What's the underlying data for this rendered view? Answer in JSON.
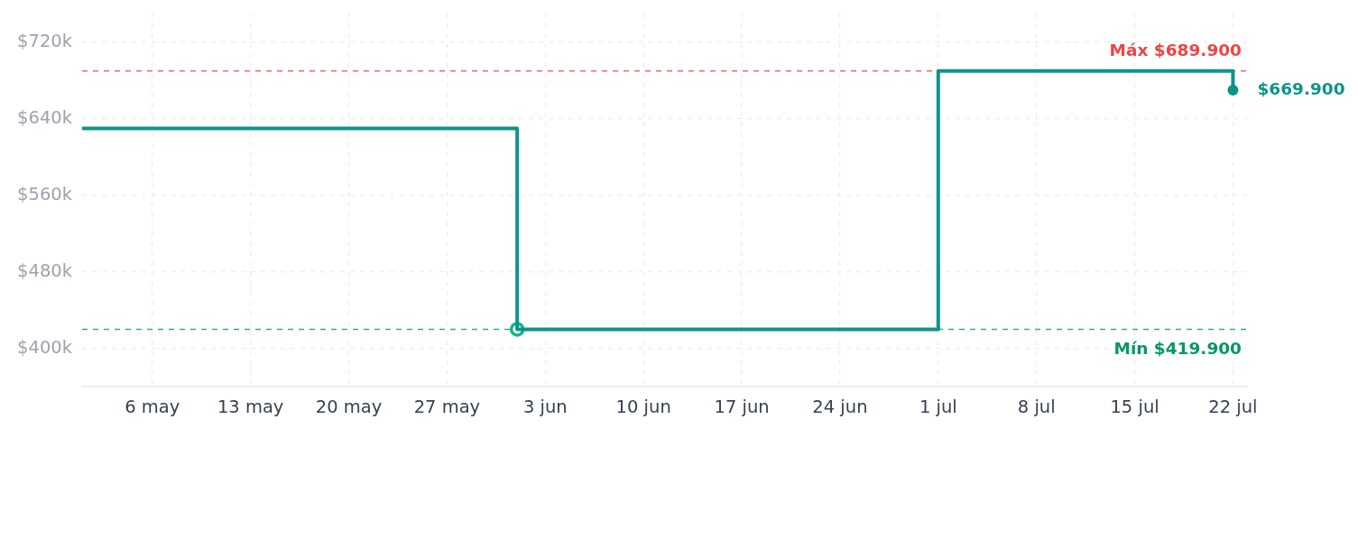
{
  "chart_data": {
    "type": "step",
    "x": [
      "--05-01",
      "--06-01",
      "--07-01",
      "--07-22"
    ],
    "series": [
      {
        "color": "#0d9488",
        "values": [
          630000,
          419900,
          689900,
          669900
        ]
      },
      {
        "type": "scatter",
        "color": "#10b981",
        "x": [
          "--06-01"
        ],
        "values": [
          419900
        ],
        "marker": "circle"
      }
    ],
    "xlim": [
      "--05-01",
      "--07-23"
    ],
    "xticks": [
      {
        "value": "--05-06",
        "label": "6 may"
      },
      {
        "value": "--05-13",
        "label": "13 may"
      },
      {
        "value": "--05-20",
        "label": "20 may"
      },
      {
        "value": "--05-27",
        "label": "27 may"
      },
      {
        "value": "--06-03",
        "label": "3 jun"
      },
      {
        "value": "--06-10",
        "label": "10 jun"
      },
      {
        "value": "--06-17",
        "label": "17 jun"
      },
      {
        "value": "--06-24",
        "label": "24 jun"
      },
      {
        "value": "--07-01",
        "label": "1 jul"
      },
      {
        "value": "--07-08",
        "label": "8 jul"
      },
      {
        "value": "--07-15",
        "label": "15 jul"
      },
      {
        "value": "--07-22",
        "label": "22 jul"
      }
    ],
    "ylim": [
      360000,
      750000
    ],
    "yticks": [
      {
        "value": 400000,
        "label": "$400k"
      },
      {
        "value": 480000,
        "label": "$480k"
      },
      {
        "value": 560000,
        "label": "$560k"
      },
      {
        "value": 640000,
        "label": "$640k"
      },
      {
        "value": 720000,
        "label": "$720k"
      }
    ],
    "grid": true,
    "ref_lines": [
      {
        "axis": "y",
        "value": 689900,
        "label": "Máx $689.900",
        "color": "#ef4444",
        "line_style": "dashed"
      },
      {
        "axis": "y",
        "value": 419900,
        "label": "Mín $419.900",
        "color": "#059669",
        "line_style": "dashed"
      }
    ],
    "annotations": [
      {
        "text": "$669.900",
        "x": "--07-22",
        "y": 669900
      }
    ]
  }
}
